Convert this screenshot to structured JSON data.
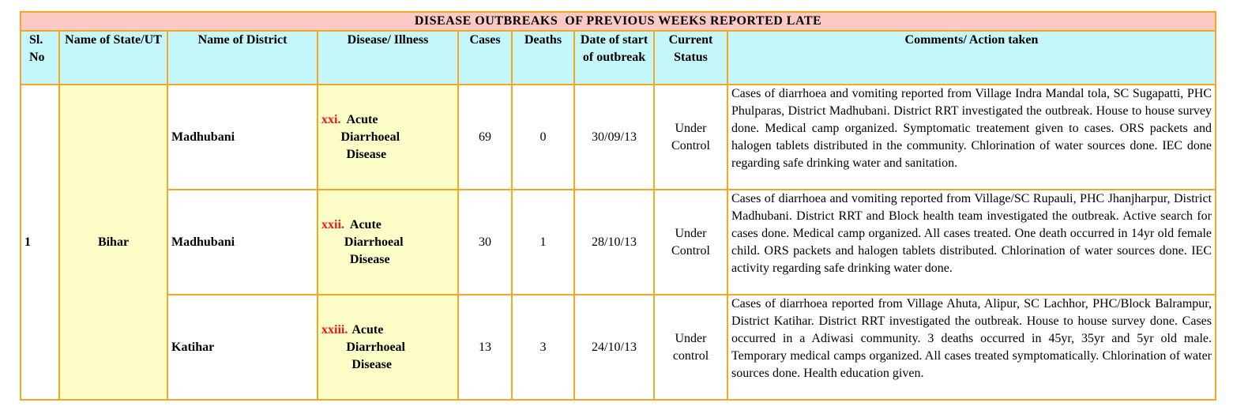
{
  "table": {
    "title": "DISEASE OUTBREAKS  OF PREVIOUS WEEKS REPORTED LATE",
    "headers": {
      "sl_no": "Sl. No",
      "state": "Name of State/UT",
      "district": "Name of District",
      "disease": "Disease/ Illness",
      "cases": "Cases",
      "deaths": "Deaths",
      "date": "Date of start of outbreak",
      "status": "Current Status",
      "comments": "Comments/ Action taken"
    },
    "sl_no": "1",
    "state": "Bihar",
    "rows": [
      {
        "district": "Madhubani",
        "disease_num": "xxi.",
        "disease_line1": "Acute",
        "disease_line2": "Diarrhoeal",
        "disease_line3": "Disease",
        "cases": "69",
        "deaths": "0",
        "date": "30/09/13",
        "status": "Under Control",
        "comments": "Cases of diarrhoea and vomiting reported from Village Indra Mandal tola, SC Sugapatti, PHC Phulparas, District Madhubani. District RRT investigated the outbreak. House to house survey done. Medical camp organized. Symptomatic treatement given to cases. ORS packets and halogen tablets distributed in the community. Chlorination of water sources done. IEC done regarding safe drinking water and sanitation."
      },
      {
        "district": "Madhubani",
        "disease_num": "xxii.",
        "disease_line1": "Acute",
        "disease_line2": "Diarrhoeal",
        "disease_line3": "Disease",
        "cases": "30",
        "deaths": "1",
        "date": "28/10/13",
        "status": "Under Control",
        "comments": "Cases of diarrhoea and vomiting reported from Village/SC Rupauli, PHC Jhanjharpur, District Madhubani. District RRT and Block health team investigated the outbreak. Active search for cases done. Medical camp organized. All cases treated. One death occurred in 14yr old female child. ORS packets and halogen tablets distributed. Chlorination of water sources done. IEC activity regarding safe drinking water done."
      },
      {
        "district": "Katihar",
        "disease_num": "xxiii.",
        "disease_line1": "Acute",
        "disease_line2": "Diarrhoeal",
        "disease_line3": "Disease",
        "cases": "13",
        "deaths": "3",
        "date": "24/10/13",
        "status": "Under control",
        "comments": "Cases of diarrhoea reported from Village Ahuta, Alipur, SC Lachhor, PHC/Block Balrampur, District Katihar. District RRT investigated the outbreak.  House to house survey done. Cases occurred in a Adiwasi community. 3 deaths occurred in 45yr, 35yr and 5yr old male. Temporary medical camps organized. All cases treated symptomatically. Chlorination of water sources done. Health education given."
      }
    ]
  }
}
